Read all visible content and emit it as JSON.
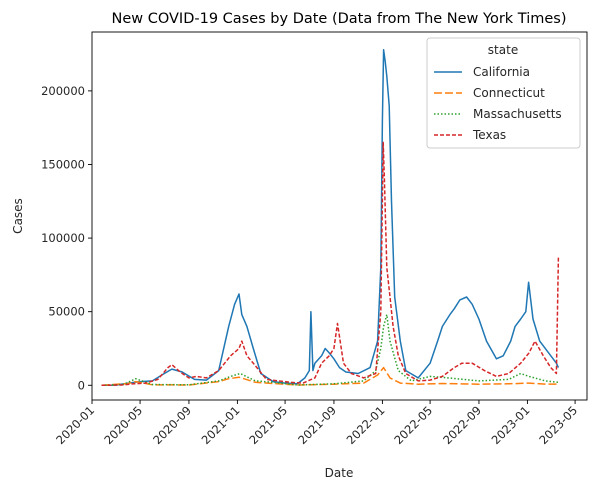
{
  "chart_data": {
    "type": "line",
    "title": "New COVID-19 Cases by Date (Data from The New York Times)",
    "xlabel": "Date",
    "ylabel": "Cases",
    "x_range": [
      "2020-01-01",
      "2023-05-31"
    ],
    "xlim": [
      "2020-01-01",
      "2023-05-31"
    ],
    "x_ticks": [
      "2020-01",
      "2020-05",
      "2020-09",
      "2021-01",
      "2021-05",
      "2021-09",
      "2022-01",
      "2022-05",
      "2022-09",
      "2023-01",
      "2023-05"
    ],
    "ylim": [
      -10000,
      240000
    ],
    "y_ticks": [
      0,
      50000,
      100000,
      150000,
      200000
    ],
    "grid": false,
    "legend": {
      "title": "state",
      "placement": "top-right"
    },
    "series": [
      {
        "name": "California",
        "color": "#1f77b4",
        "dash": "solid",
        "x": [
          "2020-01-25",
          "2020-03-01",
          "2020-04-01",
          "2020-05-01",
          "2020-06-01",
          "2020-07-01",
          "2020-07-20",
          "2020-08-15",
          "2020-09-15",
          "2020-10-15",
          "2020-11-15",
          "2020-12-10",
          "2020-12-25",
          "2021-01-05",
          "2021-01-12",
          "2021-01-25",
          "2021-02-10",
          "2021-03-01",
          "2021-04-01",
          "2021-05-01",
          "2021-06-01",
          "2021-06-20",
          "2021-07-01",
          "2021-07-05",
          "2021-07-10",
          "2021-07-15",
          "2021-08-01",
          "2021-08-10",
          "2021-08-20",
          "2021-09-01",
          "2021-09-15",
          "2021-10-01",
          "2021-11-01",
          "2021-12-01",
          "2021-12-20",
          "2021-12-28",
          "2022-01-01",
          "2022-01-04",
          "2022-01-08",
          "2022-01-12",
          "2022-01-18",
          "2022-01-24",
          "2022-02-01",
          "2022-02-15",
          "2022-03-01",
          "2022-04-01",
          "2022-05-01",
          "2022-05-20",
          "2022-06-01",
          "2022-06-20",
          "2022-07-01",
          "2022-07-15",
          "2022-08-01",
          "2022-08-15",
          "2022-09-01",
          "2022-09-20",
          "2022-10-15",
          "2022-11-01",
          "2022-11-20",
          "2022-12-01",
          "2022-12-15",
          "2022-12-28",
          "2023-01-04",
          "2023-01-15",
          "2023-02-01",
          "2023-03-01",
          "2023-03-15",
          "2023-03-20"
        ],
        "y": [
          0,
          100,
          1500,
          2500,
          3000,
          8000,
          11000,
          9000,
          4000,
          3500,
          10000,
          40000,
          55000,
          62000,
          48000,
          40000,
          25000,
          8000,
          2500,
          1500,
          1000,
          5000,
          10000,
          50000,
          10000,
          15000,
          20000,
          25000,
          22000,
          18000,
          12000,
          9000,
          8000,
          12000,
          30000,
          80000,
          180000,
          228000,
          220000,
          210000,
          190000,
          125000,
          60000,
          30000,
          10000,
          5000,
          15000,
          30000,
          40000,
          48000,
          52000,
          58000,
          60000,
          55000,
          45000,
          30000,
          18000,
          20000,
          30000,
          40000,
          45000,
          50000,
          70000,
          45000,
          30000,
          20000,
          15000,
          12000
        ]
      },
      {
        "name": "Connecticut",
        "color": "#ff7f0e",
        "dash": "8,3",
        "x": [
          "2020-01-25",
          "2020-04-01",
          "2020-04-20",
          "2020-06-01",
          "2020-09-01",
          "2020-11-15",
          "2020-12-10",
          "2021-01-05",
          "2021-02-15",
          "2021-04-01",
          "2021-06-01",
          "2021-09-01",
          "2021-11-15",
          "2021-12-20",
          "2022-01-04",
          "2022-01-20",
          "2022-02-15",
          "2022-04-01",
          "2022-06-01",
          "2022-09-01",
          "2022-11-15",
          "2023-01-05",
          "2023-02-15",
          "2023-03-20"
        ],
        "y": [
          0,
          1200,
          2500,
          300,
          200,
          2500,
          4500,
          5500,
          2000,
          1200,
          200,
          700,
          1500,
          7000,
          12000,
          5000,
          1500,
          700,
          1200,
          700,
          1000,
          1500,
          800,
          700
        ]
      },
      {
        "name": "Massachusetts",
        "color": "#2ca02c",
        "dash": "1.5,2",
        "x": [
          "2020-01-25",
          "2020-03-20",
          "2020-04-20",
          "2020-06-01",
          "2020-09-01",
          "2020-11-15",
          "2020-12-15",
          "2021-01-08",
          "2021-02-15",
          "2021-04-01",
          "2021-06-01",
          "2021-09-01",
          "2021-11-15",
          "2021-12-15",
          "2021-12-28",
          "2022-01-04",
          "2022-01-12",
          "2022-01-20",
          "2022-02-10",
          "2022-03-15",
          "2022-05-01",
          "2022-06-15",
          "2022-09-01",
          "2022-11-15",
          "2022-12-15",
          "2023-01-05",
          "2023-02-15",
          "2023-03-20"
        ],
        "y": [
          0,
          500,
          4500,
          500,
          300,
          3000,
          6000,
          8000,
          3000,
          2000,
          200,
          1000,
          3000,
          10000,
          25000,
          40000,
          48000,
          30000,
          10000,
          3000,
          6000,
          5000,
          3000,
          4000,
          8000,
          6000,
          3000,
          2000
        ]
      },
      {
        "name": "Texas",
        "color": "#d62728",
        "dash": "4,2",
        "x": [
          "2020-01-25",
          "2020-03-15",
          "2020-04-15",
          "2020-05-15",
          "2020-06-15",
          "2020-07-10",
          "2020-07-20",
          "2020-08-10",
          "2020-09-01",
          "2020-09-20",
          "2020-10-15",
          "2020-11-15",
          "2020-12-15",
          "2021-01-05",
          "2021-01-12",
          "2021-01-25",
          "2021-02-10",
          "2021-02-25",
          "2021-03-15",
          "2021-04-15",
          "2021-05-15",
          "2021-06-15",
          "2021-07-15",
          "2021-08-01",
          "2021-08-20",
          "2021-09-01",
          "2021-09-10",
          "2021-09-25",
          "2021-10-15",
          "2021-11-15",
          "2021-12-15",
          "2021-12-28",
          "2022-01-03",
          "2022-01-06",
          "2022-01-12",
          "2022-01-20",
          "2022-01-28",
          "2022-02-10",
          "2022-03-01",
          "2022-04-01",
          "2022-05-01",
          "2022-06-01",
          "2022-07-01",
          "2022-07-20",
          "2022-08-15",
          "2022-09-15",
          "2022-10-15",
          "2022-11-15",
          "2022-12-15",
          "2023-01-05",
          "2023-01-20",
          "2023-02-10",
          "2023-03-01",
          "2023-03-15",
          "2023-03-20"
        ],
        "y": [
          0,
          200,
          1000,
          1500,
          4000,
          12000,
          14000,
          9000,
          5000,
          6000,
          5000,
          10000,
          20000,
          25000,
          30000,
          20000,
          15000,
          10000,
          4000,
          3000,
          2000,
          1500,
          5000,
          15000,
          20000,
          25000,
          42000,
          15000,
          8000,
          5000,
          8000,
          50000,
          165000,
          140000,
          80000,
          60000,
          40000,
          20000,
          8000,
          3000,
          3500,
          6000,
          12000,
          15000,
          15000,
          10000,
          6000,
          8000,
          15000,
          22000,
          30000,
          20000,
          12000,
          8000,
          87000
        ]
      }
    ]
  }
}
